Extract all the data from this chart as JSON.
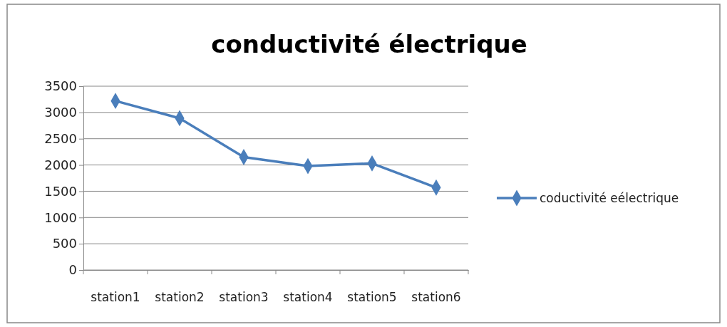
{
  "chart_data": {
    "type": "line",
    "title": "conductivité électrique",
    "categories": [
      "station1",
      "station2",
      "station3",
      "station4",
      "station5",
      "station6"
    ],
    "series": [
      {
        "name": "coductivité eélectrique",
        "color": "#4a7ebb",
        "values": [
          3220,
          2890,
          2150,
          1980,
          2030,
          1570
        ]
      }
    ],
    "ylim": [
      0,
      3500
    ],
    "yticks": [
      0,
      500,
      1000,
      1500,
      2000,
      2500,
      3000,
      3500
    ],
    "grid": "y",
    "legend": "right",
    "marker": "diamond",
    "line_style": "solid"
  }
}
